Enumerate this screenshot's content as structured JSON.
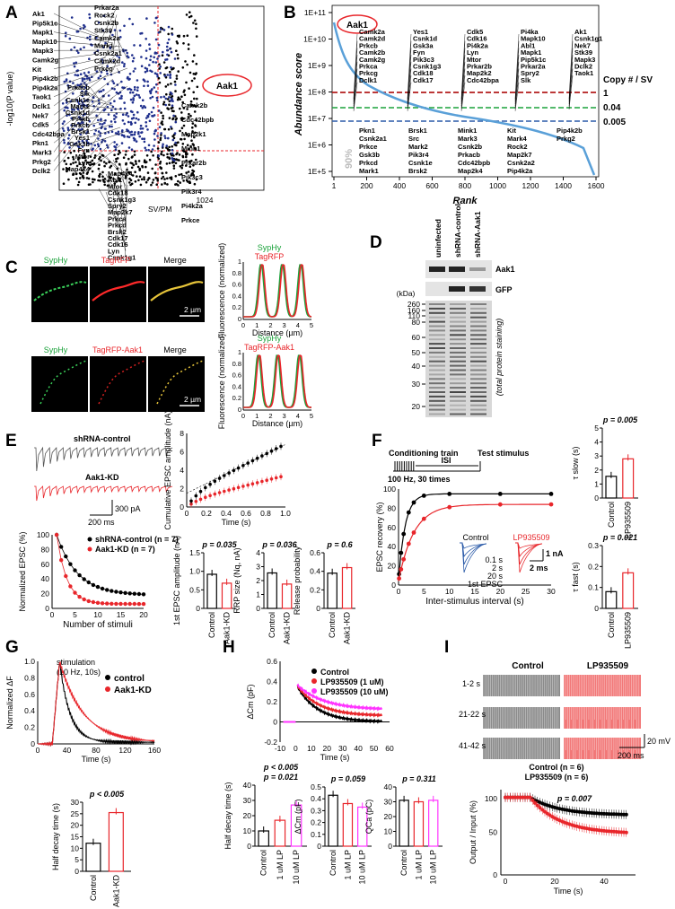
{
  "panels": {
    "A": "A",
    "B": "B",
    "C": "C",
    "D": "D",
    "E": "E",
    "F": "F",
    "G": "G",
    "H": "H",
    "I": "I"
  },
  "colors": {
    "blue": "#1f2f8c",
    "red": "#e8262b",
    "lightblue": "#5aa0d8",
    "green": "#1aa23a",
    "magenta": "#ff33ff",
    "gray": "#888888"
  },
  "A": {
    "ylabel": "-log10(P value)",
    "xtick": "1024",
    "threshold_label": "SV/PM",
    "circled": "Aak1",
    "left_labels": [
      "Ak1",
      "Pip5k1c",
      "Mapk1",
      "Mapk10",
      "Mapk3",
      "Camk2g",
      "Kit",
      "Pip4k2b",
      "Pip4k2a",
      "Taok1",
      "Dclk1",
      "Nek7",
      "Cdk5",
      "Cdc42bpa",
      "Pkn1",
      "Mark3",
      "Prkg2",
      "Dclk2"
    ],
    "top_labels": [
      "Prkar2a",
      "Rock2",
      "Csnk2b",
      "Stk39",
      "Camk2a",
      "Mark1",
      "Csnk2a1",
      "Camk2d",
      "Prkcg",
      "Camk2b",
      "Cdc42bpb",
      "Map2k1",
      "Mink1",
      "Prkar2b",
      "Pik3c3",
      "Pik3r4",
      "Pi4k2a",
      "Prkce"
    ],
    "mid_labels": [
      "Prkacb",
      "Slk",
      "Csnk1e",
      "Mark2",
      "Csnk1d",
      "Pi4kb",
      "Prkcb",
      "Brsk1",
      "Yes1",
      "Gsk3b",
      "Fyn",
      "Mtor",
      "Lyn",
      "Map4k4"
    ],
    "bottom_labels": [
      "Map4k4",
      "Abl1",
      "Mtor",
      "Cdk18",
      "Csnk1g3",
      "Spry2",
      "Map2k7",
      "Prkca",
      "Prkcd",
      "Brsk2",
      "Cdk17",
      "Cdk16",
      "Lyn",
      "Csnk1g1"
    ]
  },
  "B": {
    "ylabel": "Abundance score",
    "xlabel": "Rank",
    "yticks": [
      "1E+11",
      "1E+10",
      "1E+9",
      "1E+8",
      "1E+7",
      "1E+6",
      "1E+5"
    ],
    "xticks": [
      "1",
      "200",
      "400",
      "600",
      "800",
      "1000",
      "1200",
      "1400",
      "1600"
    ],
    "copy_title": "Copy # / SV",
    "copy_values": [
      "1",
      "0.04",
      "0.005"
    ],
    "circled": "Aak1",
    "pct": "90%",
    "labels_top": [
      "Camk2a",
      "Camk2d",
      "Prkcb",
      "Camk2b",
      "Camk2g",
      "Prkca",
      "Prkcg",
      "Dclk1",
      "Yes1",
      "Csnk1d",
      "Gsk3a",
      "Fyn",
      "Pik3c3",
      "Csnk1g3",
      "Cdk18",
      "Cdk17",
      "Cdk5",
      "Cdk16",
      "Pi4k2a",
      "Lyn",
      "Mtor",
      "Prkar2b",
      "Map2k2",
      "Cdc42bpa",
      "Pi4ka",
      "Mapk10",
      "Abl1",
      "Mapk1",
      "Pip5k1c",
      "Prkar2a",
      "Spry2",
      "Slk",
      "Ak1",
      "Csnk1g1",
      "Nek7",
      "Stk39",
      "Mapk3",
      "Dclk2",
      "Taok1"
    ],
    "labels_bottom": [
      "Pkn1",
      "Csnk2a1",
      "Prkce",
      "Gsk3b",
      "Prkcd",
      "Mark1",
      "Brsk1",
      "Src",
      "Mark2",
      "Pik3r4",
      "Csnk1e",
      "Brsk2",
      "Mink1",
      "Mark3",
      "Csnk2b",
      "Prkacb",
      "Cdc42bpb",
      "Map2k4",
      "Kit",
      "Mark4",
      "Rock2",
      "Map2k7",
      "Csnk2a2",
      "Pip4k2a",
      "Pip4k2b",
      "Prkg2"
    ]
  },
  "C": {
    "row1": {
      "ch1": "SypHy",
      "ch2": "TagRFP",
      "merge": "Merge",
      "scale": "2 µm",
      "legend1": "SypHy",
      "legend2": "TagRFP"
    },
    "row2": {
      "ch1": "SypHy",
      "ch2": "TagRFP-Aak1",
      "merge": "Merge",
      "scale": "2 µm",
      "legend1": "SypHy",
      "legend2": "TagRFP-Aak1"
    },
    "ylabel": "Fluorescence (normalized)",
    "xlabel": "Distance (µm)",
    "xticks": [
      "0",
      "1",
      "2",
      "3",
      "4",
      "5"
    ],
    "yticks": [
      "0",
      "0.2",
      "0.4",
      "0.6",
      "0.8",
      "1"
    ]
  },
  "D": {
    "lanes": [
      "uninfected",
      "shRNA-control",
      "shRNA-Aak1"
    ],
    "bands": [
      "Aak1",
      "GFP"
    ],
    "kda": "(kDa)",
    "markers": [
      "260",
      "160",
      "110",
      "80",
      "60",
      "50",
      "40",
      "30",
      "20"
    ],
    "note": "(total protein staining)"
  },
  "E": {
    "trace1": "shRNA-control",
    "trace2": "Aak1-KD",
    "scale_pA": "300 pA",
    "scale_ms": "200 ms",
    "cum_ylabel": "Cumulative EPSC amplitude (nA)",
    "cum_xlabel": "Time (s)",
    "cum_xticks": [
      "0",
      "0.2",
      "0.4",
      "0.6",
      "0.8",
      "1.0"
    ],
    "cum_yticks": [
      "0",
      "2",
      "4",
      "6",
      "8"
    ],
    "norm_ylabel": "Normalized EPSC (%)",
    "norm_xlabel": "Number of stimuli",
    "norm_xticks": [
      "0",
      "5",
      "10",
      "15",
      "20"
    ],
    "norm_yticks": [
      "0",
      "20",
      "40",
      "60",
      "80",
      "100"
    ],
    "legend1": "shRNA-control (n = 7)",
    "legend2": "Aak1-KD (n = 7)",
    "bars": [
      {
        "ylabel": "1st EPSC amplitude (nA)",
        "p": "p = 0.035",
        "yticks": [
          "0",
          "0.5",
          "1.0",
          "1.5"
        ],
        "values": [
          0.92,
          0.68
        ],
        "ymax": 1.5
      },
      {
        "ylabel": "RRP size (Nq, nA)",
        "p": "p = 0.036",
        "yticks": [
          "0",
          "1",
          "2",
          "3",
          "4"
        ],
        "values": [
          2.55,
          1.75
        ],
        "ymax": 4
      },
      {
        "ylabel": "Release probability",
        "p": "p = 0.6",
        "yticks": [
          "0",
          "0.2",
          "0.4",
          "0.6"
        ],
        "values": [
          0.38,
          0.44
        ],
        "ymax": 0.6
      }
    ],
    "bar_x": [
      "Control",
      "Aak1-KD"
    ]
  },
  "F": {
    "title1": "Conditioning train",
    "title2": "Test stimulus",
    "isi": "ISI",
    "train": "100 Hz, 30 times",
    "ylabel": "EPSC recovery (%)",
    "xlabel": "Inter-stimulus interval (s)",
    "xticks": [
      "0",
      "5",
      "10",
      "15",
      "20",
      "25",
      "30"
    ],
    "yticks": [
      "0",
      "20",
      "40",
      "60",
      "80",
      "100"
    ],
    "inset_ctrl": "Control",
    "inset_lp": "LP935509",
    "inset_labels": [
      "0.1 s",
      "2 s",
      "20 s",
      "1st EPSC"
    ],
    "scale_nA": "1 nA",
    "scale_ms": "2 ms",
    "tau_slow": {
      "ylabel": "τ slow (s)",
      "p": "p = 0.005",
      "yticks": [
        "0",
        "1",
        "2",
        "3",
        "4",
        "5"
      ],
      "values": [
        1.55,
        2.8
      ],
      "ymax": 5
    },
    "tau_fast": {
      "ylabel": "τ fast (s)",
      "p": "p = 0.021",
      "yticks": [
        "0",
        "0.1",
        "0.2",
        "0.3"
      ],
      "values": [
        0.08,
        0.17
      ],
      "ymax": 0.3
    },
    "bar_x": [
      "Control",
      "LP935509"
    ]
  },
  "G": {
    "stim": "stimulation",
    "stim2": "(10 Hz, 10s)",
    "ylabel": "Normalized ΔF",
    "xlabel": "Time (s)",
    "xticks": [
      "0",
      "40",
      "80",
      "120",
      "160"
    ],
    "yticks": [
      "0",
      "0.2",
      "0.4",
      "0.6",
      "0.8",
      "1.0"
    ],
    "legend1": "control",
    "legend2": "Aak1-KD",
    "bar": {
      "ylabel": "Half decay time (s)",
      "p": "p < 0.005",
      "yticks": [
        "0",
        "5",
        "10",
        "15",
        "20",
        "25",
        "30"
      ],
      "values": [
        12.2,
        25.5
      ],
      "ymax": 30
    },
    "bar_x": [
      "Control",
      "Aak1-KD"
    ]
  },
  "H": {
    "ylabel": "ΔCm (pF)",
    "xlabel": "Time (s)",
    "xticks": [
      "-10",
      "0",
      "10",
      "20",
      "30",
      "40",
      "50",
      "60"
    ],
    "yticks": [
      "-0.2",
      "0",
      "0.2",
      "0.4",
      "0.6"
    ],
    "legend": [
      "Control",
      "LP935509 (1 uM)",
      "LP935509 (10 uM)"
    ],
    "bars": [
      {
        "ylabel": "Half decay time (s)",
        "p1": "p < 0.005",
        "p2": "p = 0.021",
        "yticks": [
          "0",
          "10",
          "20",
          "30",
          "40"
        ],
        "values": [
          10,
          17,
          27
        ],
        "ymax": 40
      },
      {
        "ylabel": "ΔCm (pF)",
        "p": "p = 0.059",
        "yticks": [
          "0",
          "0.1",
          "0.2",
          "0.3",
          "0.4",
          "0.5"
        ],
        "values": [
          0.43,
          0.36,
          0.33
        ],
        "ymax": 0.5
      },
      {
        "ylabel": "QCa (pC)",
        "p": "p = 0.311",
        "yticks": [
          "0",
          "10",
          "20",
          "30",
          "40"
        ],
        "values": [
          31,
          30,
          31
        ],
        "ymax": 40
      }
    ],
    "bar_x": [
      "Control",
      "1 uM LP",
      "10 uM LP"
    ]
  },
  "I": {
    "ctrl": "Control",
    "lp": "LP935509",
    "rows": [
      "1-2 s",
      "21-22 s",
      "41-42 s"
    ],
    "scale_mv": "20 mV",
    "scale_ms": "200 ms",
    "n1": "Control (n = 6)",
    "n2": "LP935509 (n = 6)",
    "p": "p = 0.007",
    "ylabel": "Output / Input (%)",
    "xlabel": "Time (s)",
    "xticks": [
      "0",
      "20",
      "40"
    ],
    "yticks": [
      "0",
      "50",
      "100"
    ]
  }
}
